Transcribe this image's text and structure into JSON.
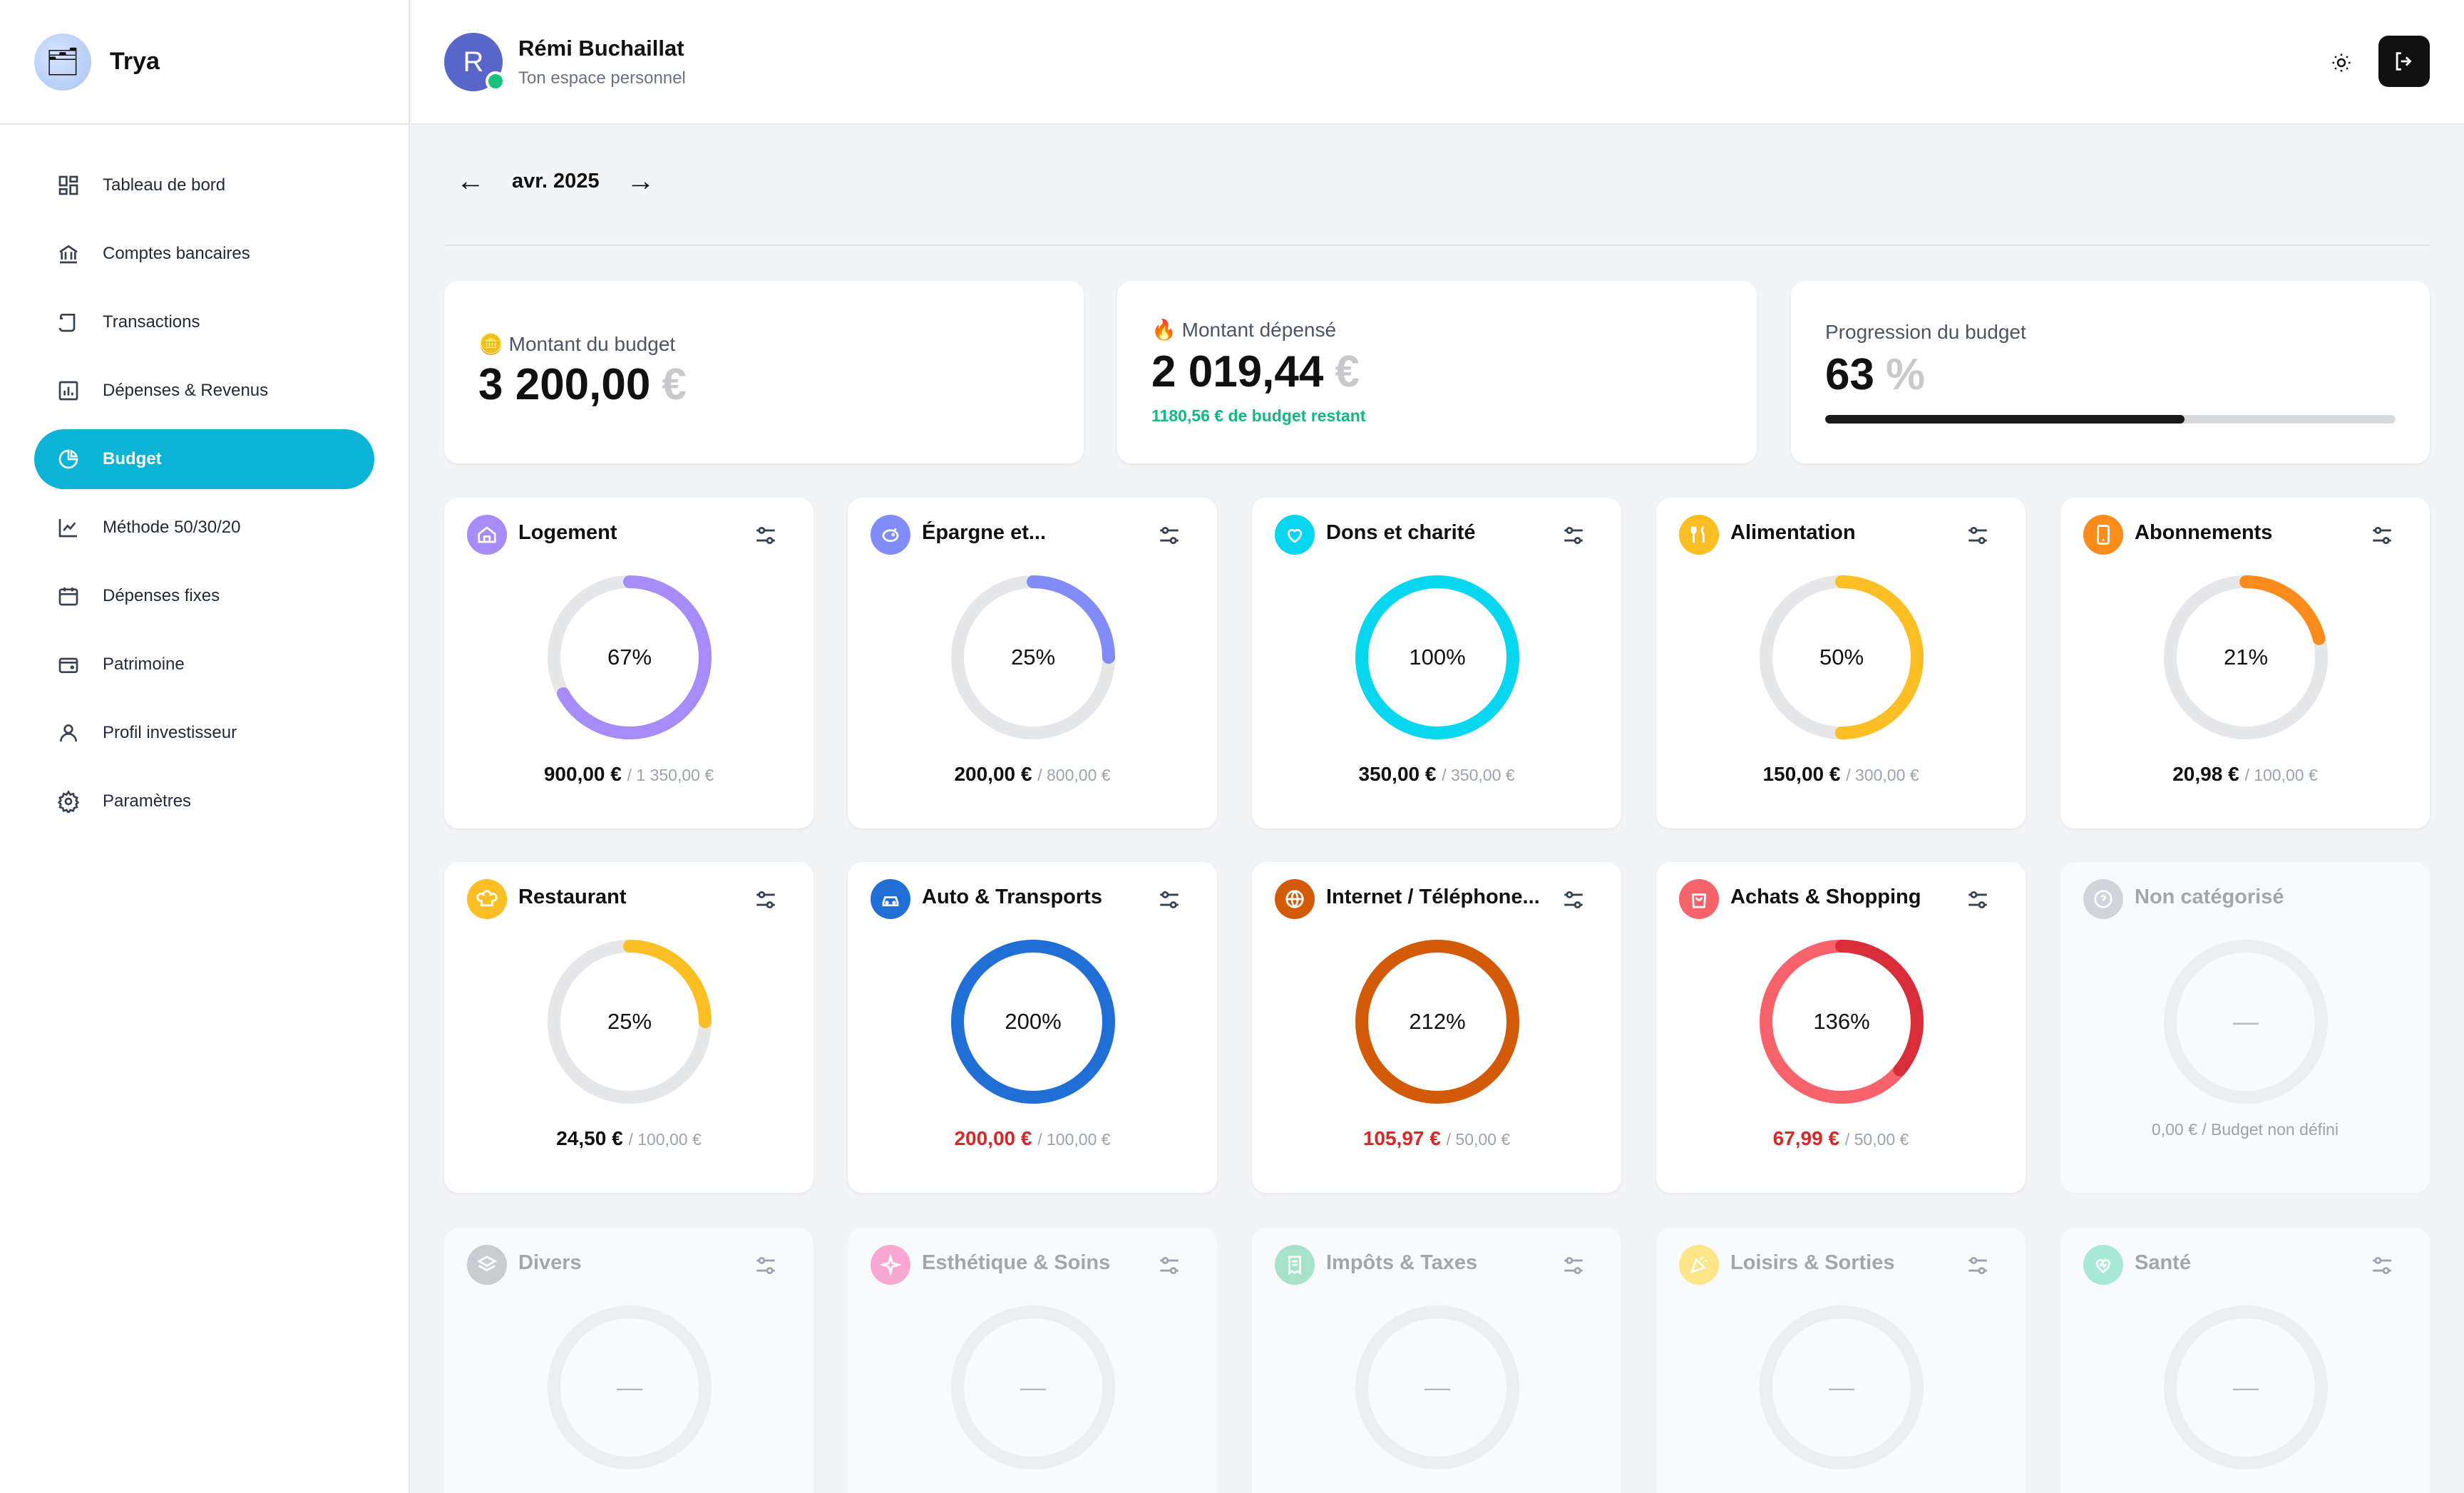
{
  "brand": {
    "name": "Trya"
  },
  "sidebar": {
    "items": [
      {
        "label": "Tableau de bord",
        "icon": "dashboard-icon"
      },
      {
        "label": "Comptes bancaires",
        "icon": "bank-icon"
      },
      {
        "label": "Transactions",
        "icon": "scroll-icon"
      },
      {
        "label": "Dépenses & Revenus",
        "icon": "bar-chart-icon"
      },
      {
        "label": "Budget",
        "icon": "pie-chart-icon",
        "active": true
      },
      {
        "label": "Méthode 50/30/20",
        "icon": "line-chart-icon"
      },
      {
        "label": "Dépenses fixes",
        "icon": "calendar-icon"
      },
      {
        "label": "Patrimoine",
        "icon": "wallet-icon"
      },
      {
        "label": "Profil investisseur",
        "icon": "user-icon"
      },
      {
        "label": "Paramètres",
        "icon": "gear-icon"
      }
    ]
  },
  "header": {
    "avatar_initial": "R",
    "user_name": "Rémi Buchaillat",
    "subtitle": "Ton espace personnel"
  },
  "month": {
    "label": "avr. 2025",
    "prev": "←",
    "next": "→"
  },
  "summary": {
    "budget": {
      "label": "Montant du budget",
      "emoji": "🪙",
      "value": "3 200,00",
      "unit": "€"
    },
    "spent": {
      "label": "Montant dépensé",
      "emoji": "🔥",
      "value": "2 019,44",
      "unit": "€",
      "remaining": "1180,56 € de budget restant"
    },
    "progress": {
      "label": "Progression du budget",
      "value": "63",
      "unit": "%",
      "fraction": 0.63
    }
  },
  "categories": [
    {
      "name": "Logement",
      "icon": "home-icon",
      "color": "#a78bfa",
      "percent_label": "67%",
      "fraction": 0.67,
      "spent": "900,00 €",
      "total": "/ 1 350,00 €",
      "over": false
    },
    {
      "name": "Épargne et...",
      "icon": "piggy-bank-icon",
      "color": "#818cf8",
      "percent_label": "25%",
      "fraction": 0.25,
      "spent": "200,00 €",
      "total": "/ 800,00 €",
      "over": false
    },
    {
      "name": "Dons et charité",
      "icon": "heart-hand-icon",
      "color": "#06d6ef",
      "percent_label": "100%",
      "fraction": 1.0,
      "spent": "350,00 €",
      "total": "/ 350,00 €",
      "over": false
    },
    {
      "name": "Alimentation",
      "icon": "utensils-icon",
      "color": "#fbbf24",
      "percent_label": "50%",
      "fraction": 0.5,
      "spent": "150,00 €",
      "total": "/ 300,00 €",
      "over": false
    },
    {
      "name": "Abonnements",
      "icon": "smartphone-icon",
      "color": "#fb8c1c",
      "percent_label": "21%",
      "fraction": 0.21,
      "spent": "20,98 €",
      "total": "/ 100,00 €",
      "over": false
    },
    {
      "name": "Restaurant",
      "icon": "chef-hat-icon",
      "color": "#fbbf24",
      "percent_label": "25%",
      "fraction": 0.25,
      "spent": "24,50 €",
      "total": "/ 100,00 €",
      "over": false
    },
    {
      "name": "Auto & Transports",
      "icon": "car-icon",
      "color": "#1f6fd6",
      "percent_label": "200%",
      "fraction": 2.0,
      "spent": "200,00 €",
      "total": "/ 100,00 €",
      "over": true
    },
    {
      "name": "Internet / Téléphone...",
      "icon": "globe-icon",
      "color": "#d35a06",
      "percent_label": "212%",
      "fraction": 2.12,
      "spent": "105,97 €",
      "total": "/ 50,00 €",
      "over": true
    },
    {
      "name": "Achats & Shopping",
      "icon": "shopping-bag-icon",
      "color": "#f8636b",
      "percent_label": "136%",
      "fraction": 1.36,
      "spent": "67,99 €",
      "total": "/ 50,00 €",
      "over": true,
      "over_color": "#d92d3a"
    },
    {
      "name": "Non catégorisé",
      "icon": "question-icon",
      "color": "#d1d5db",
      "percent_label": "—",
      "na_text": "0,00 € / Budget non défini",
      "faded": true,
      "no_settings": true
    },
    {
      "name": "Divers",
      "icon": "layers-icon",
      "color": "#c9ccd1",
      "percent_label": "—",
      "faded": true
    },
    {
      "name": "Esthétique & Soins",
      "icon": "sparkle-icon",
      "color": "#f9a8d4",
      "percent_label": "—",
      "faded": true
    },
    {
      "name": "Impôts & Taxes",
      "icon": "receipt-icon",
      "color": "#a7e3c9",
      "percent_label": "—",
      "faded": true
    },
    {
      "name": "Loisirs & Sorties",
      "icon": "party-icon",
      "color": "#fde68a",
      "percent_label": "—",
      "faded": true
    },
    {
      "name": "Santé",
      "icon": "heart-pulse-icon",
      "color": "#a7e9d4",
      "percent_label": "—",
      "faded": true
    }
  ]
}
